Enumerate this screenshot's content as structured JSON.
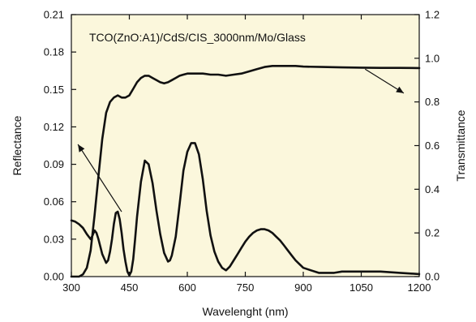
{
  "chart_data": {
    "type": "line",
    "annotation": "TCO(ZnO:A1)/CdS/CIS_3000nm/Mo/Glass",
    "xlabel": "Wavelenght (nm)",
    "ylabel_left": "Reflectance",
    "ylabel_right": "Transmittance",
    "xlim": [
      300,
      1200
    ],
    "ylim_left": [
      0,
      0.21
    ],
    "ylim_right": [
      0,
      1.2
    ],
    "x_ticks": [
      "300",
      "450",
      "600",
      "750",
      "900",
      "1050",
      "1200"
    ],
    "y_left_ticks": [
      "0.00",
      "0.03",
      "0.06",
      "0.09",
      "0.12",
      "0.15",
      "0.18",
      "0.21"
    ],
    "y_right_ticks": [
      "0.0",
      "0.2",
      "0.4",
      "0.6",
      "0.8",
      "1.0",
      "1.2"
    ],
    "grid": false,
    "background_color": "#fbf7dc",
    "series": [
      {
        "axis": "left",
        "x": [
          300,
          310,
          320,
          330,
          340,
          350,
          355,
          360,
          365,
          370,
          380,
          390,
          395,
          400,
          405,
          410,
          415,
          420,
          425,
          430,
          435,
          440,
          445,
          450,
          455,
          460,
          465,
          470,
          480,
          490,
          500,
          510,
          520,
          530,
          540,
          550,
          555,
          560,
          570,
          580,
          590,
          600,
          610,
          620,
          630,
          640,
          650,
          660,
          670,
          680,
          690,
          700,
          710,
          720,
          730,
          740,
          750,
          760,
          770,
          780,
          790,
          800,
          810,
          820,
          830,
          840,
          850,
          860,
          870,
          880,
          890,
          900,
          920,
          940,
          960,
          980,
          1000,
          1050,
          1100,
          1150,
          1200
        ],
        "y": [
          0.045,
          0.044,
          0.042,
          0.039,
          0.034,
          0.03,
          0.033,
          0.037,
          0.035,
          0.03,
          0.018,
          0.011,
          0.013,
          0.02,
          0.03,
          0.042,
          0.051,
          0.052,
          0.046,
          0.035,
          0.022,
          0.012,
          0.004,
          0.001,
          0.004,
          0.014,
          0.03,
          0.048,
          0.076,
          0.093,
          0.09,
          0.075,
          0.053,
          0.034,
          0.019,
          0.012,
          0.013,
          0.017,
          0.032,
          0.058,
          0.085,
          0.1,
          0.107,
          0.107,
          0.098,
          0.078,
          0.053,
          0.033,
          0.02,
          0.012,
          0.007,
          0.005,
          0.008,
          0.013,
          0.018,
          0.023,
          0.028,
          0.032,
          0.035,
          0.037,
          0.038,
          0.038,
          0.037,
          0.035,
          0.032,
          0.029,
          0.025,
          0.021,
          0.017,
          0.013,
          0.01,
          0.007,
          0.005,
          0.003,
          0.003,
          0.003,
          0.004,
          0.004,
          0.004,
          0.003,
          0.002
        ]
      },
      {
        "axis": "right",
        "x": [
          300,
          320,
          330,
          340,
          350,
          360,
          370,
          380,
          390,
          400,
          410,
          420,
          430,
          440,
          450,
          460,
          470,
          480,
          490,
          500,
          510,
          520,
          530,
          540,
          550,
          560,
          570,
          580,
          590,
          600,
          620,
          640,
          660,
          680,
          700,
          720,
          740,
          760,
          780,
          800,
          820,
          840,
          860,
          880,
          900,
          950,
          1000,
          1050,
          1100,
          1150,
          1200
        ],
        "y": [
          0.0,
          0.0,
          0.01,
          0.04,
          0.12,
          0.28,
          0.46,
          0.63,
          0.75,
          0.8,
          0.82,
          0.83,
          0.82,
          0.82,
          0.83,
          0.86,
          0.89,
          0.91,
          0.92,
          0.92,
          0.91,
          0.9,
          0.89,
          0.885,
          0.89,
          0.9,
          0.91,
          0.92,
          0.925,
          0.93,
          0.93,
          0.93,
          0.925,
          0.925,
          0.92,
          0.925,
          0.93,
          0.94,
          0.95,
          0.96,
          0.965,
          0.965,
          0.965,
          0.965,
          0.962,
          0.96,
          0.958,
          0.957,
          0.956,
          0.956,
          0.955
        ]
      }
    ],
    "arrows": [
      {
        "from": [
          430,
          0.052
        ],
        "to": [
          317,
          0.106
        ],
        "axis": "left"
      },
      {
        "from": [
          1060,
          0.95
        ],
        "to": [
          1160,
          0.84
        ],
        "axis": "right"
      }
    ]
  }
}
